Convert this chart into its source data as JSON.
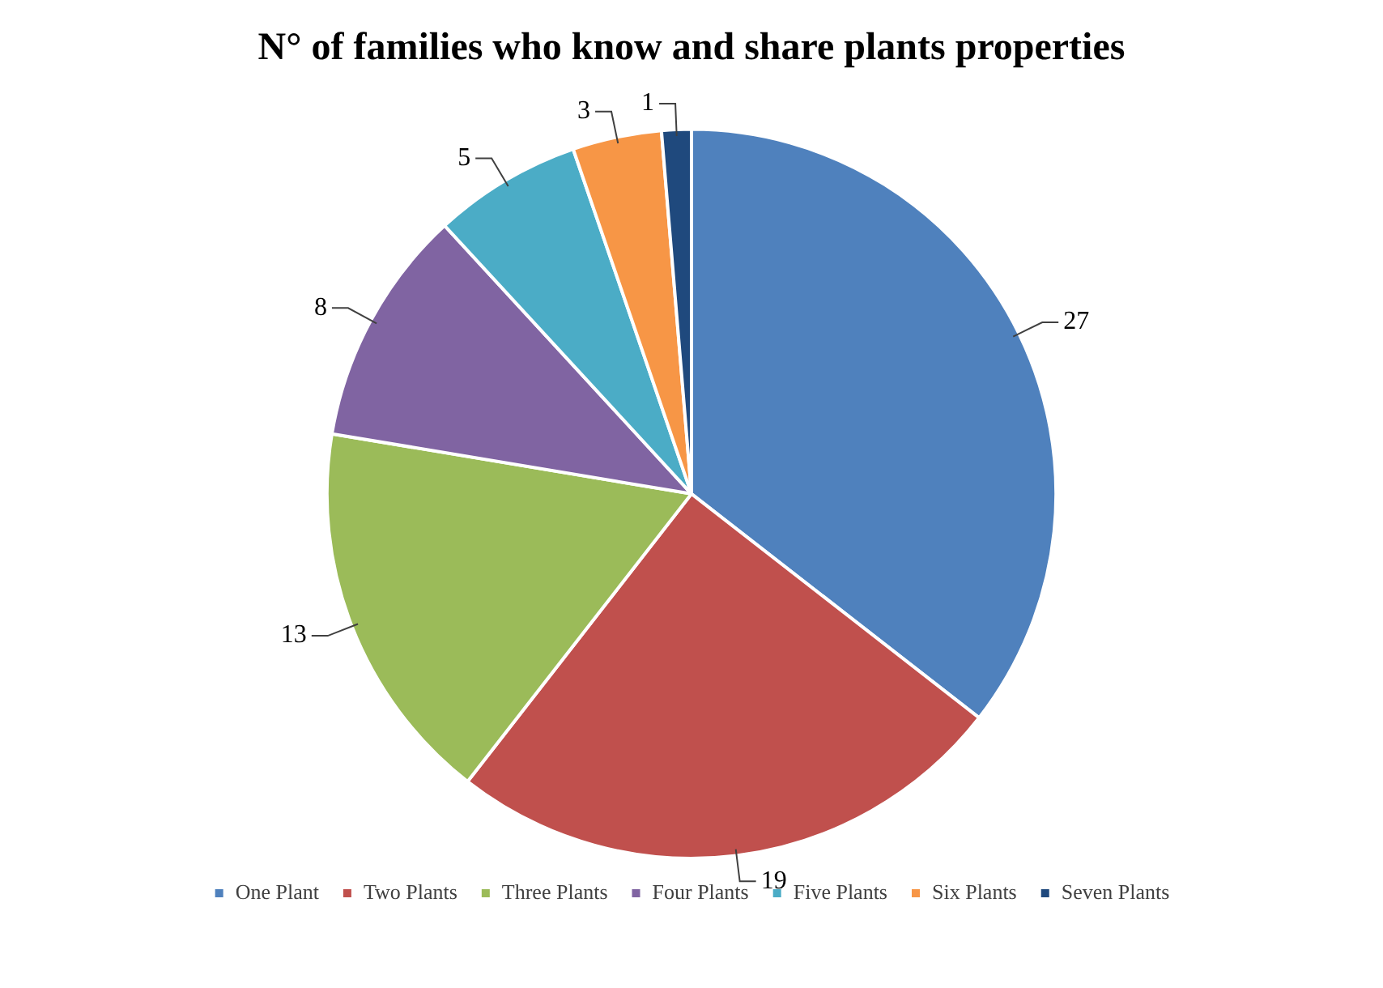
{
  "chart_data": {
    "type": "pie",
    "title": "N° of families who know and share plants properties",
    "categories": [
      "One Plant",
      "Two Plants",
      "Three Plants",
      "Four Plants",
      "Five Plants",
      "Six Plants",
      "Seven Plants"
    ],
    "values": [
      27,
      19,
      13,
      8,
      5,
      3,
      1
    ],
    "colors": [
      "#4f81bd",
      "#c0504d",
      "#9bbb59",
      "#8064a2",
      "#4bacc6",
      "#f79646",
      "#1f497d"
    ],
    "data_labels": true,
    "legend": "bottom"
  }
}
